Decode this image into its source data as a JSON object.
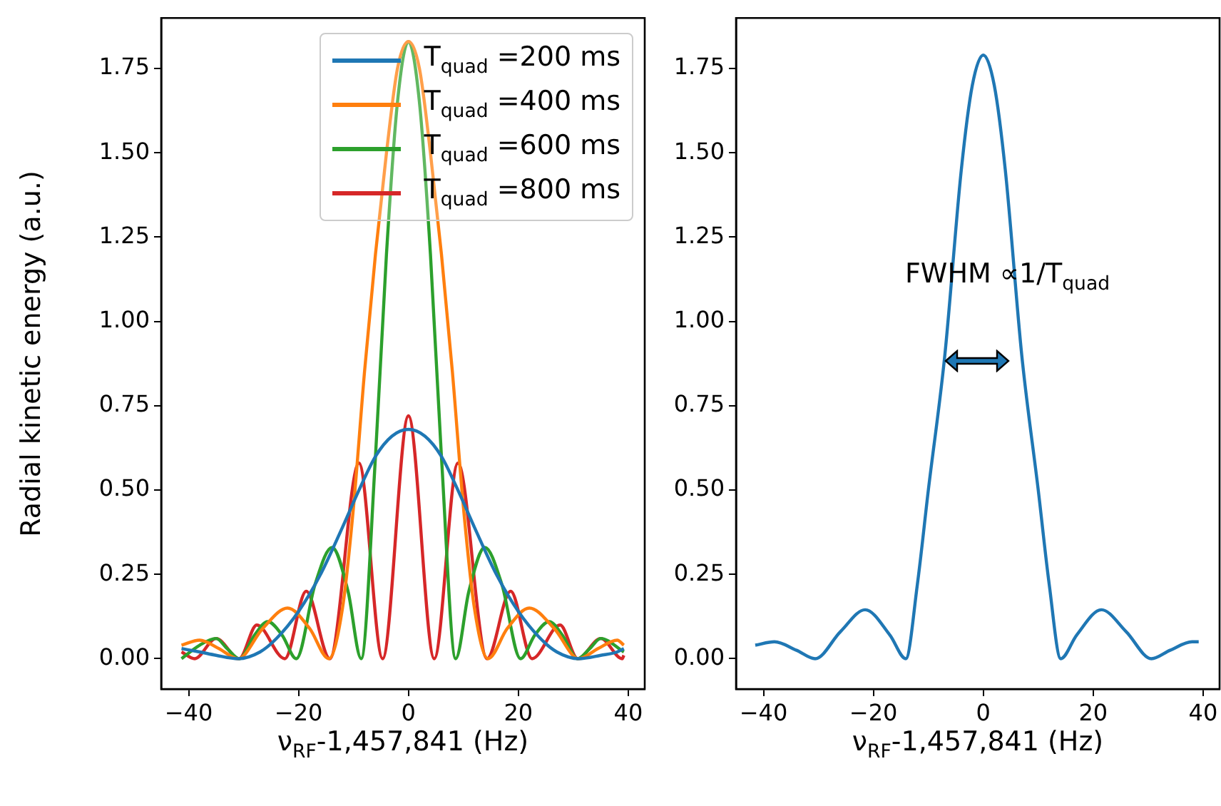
{
  "chart_data": [
    {
      "type": "line",
      "xlabel": "ν$_{RF}$-1,457,841 (Hz)",
      "ylabel": "Radial kinetic energy (a.u.)",
      "xlim": [
        -45,
        43
      ],
      "ylim": [
        -0.09,
        1.9
      ],
      "xticks": [
        -40,
        -20,
        0,
        20,
        40
      ],
      "yticks": [
        {
          "value": 0,
          "label": "0.00"
        },
        {
          "value": 0.25,
          "label": "0.25"
        },
        {
          "value": 0.5,
          "label": "0.50"
        },
        {
          "value": 0.75,
          "label": "0.75"
        },
        {
          "value": 1,
          "label": "1.00"
        },
        {
          "value": 1.25,
          "label": "1.25"
        },
        {
          "value": 1.5,
          "label": "1.50"
        },
        {
          "value": 1.75,
          "label": "1.75"
        }
      ],
      "legend": "top right",
      "marker": "none",
      "line_style": "solid",
      "series": [
        {
          "name": "T$_{quad}$ =200 ms",
          "color": "#1f77b4",
          "x": [
            -41.3,
            -38,
            -35,
            -31,
            -27,
            -24,
            -20,
            -16,
            -12,
            -9,
            -6,
            -3,
            0,
            3,
            6,
            9,
            12,
            16,
            20,
            24,
            27,
            31,
            35,
            38,
            39.2
          ],
          "values": [
            0.03,
            0.02,
            0.01,
            0,
            0.02,
            0.06,
            0.14,
            0.25,
            0.39,
            0.5,
            0.6,
            0.66,
            0.68,
            0.66,
            0.6,
            0.5,
            0.39,
            0.25,
            0.14,
            0.06,
            0.02,
            0,
            0.01,
            0.02,
            0.03
          ]
        },
        {
          "name": "T$_{quad}$ =400 ms",
          "color": "#ff7f0e",
          "x": [
            -41.3,
            -38,
            -34.5,
            -31,
            -26.5,
            -22,
            -18,
            -14.5,
            -12,
            -10,
            -8,
            -6,
            -4,
            -2,
            0,
            2,
            4,
            6,
            8,
            10,
            12,
            14.5,
            18,
            22,
            26.5,
            31,
            34.5,
            38,
            39.2
          ],
          "values": [
            0.04,
            0.055,
            0.03,
            0,
            0.09,
            0.15,
            0.09,
            0,
            0.15,
            0.45,
            0.85,
            1.2,
            1.5,
            1.75,
            1.83,
            1.75,
            1.5,
            1.2,
            0.85,
            0.45,
            0.15,
            0,
            0.09,
            0.15,
            0.09,
            0,
            0.03,
            0.055,
            0.04
          ]
        },
        {
          "name": "T$_{quad}$ =600 ms",
          "color": "#2ca02c",
          "x": [
            -41.3,
            -38,
            -35,
            -33,
            -30.8,
            -28,
            -25.6,
            -23,
            -20.4,
            -17,
            -13.9,
            -11,
            -8.6,
            -6,
            -4,
            -2,
            0,
            2,
            4,
            6,
            8.6,
            11,
            13.9,
            17,
            20.4,
            23,
            25.6,
            28,
            30.8,
            33,
            35,
            39.2
          ],
          "values": [
            0,
            0.04,
            0.06,
            0.03,
            0,
            0.07,
            0.11,
            0.07,
            0,
            0.22,
            0.33,
            0.2,
            0,
            0.6,
            1.2,
            1.65,
            1.83,
            1.65,
            1.2,
            0.6,
            0,
            0.2,
            0.33,
            0.22,
            0,
            0.07,
            0.11,
            0.07,
            0,
            0.03,
            0.06,
            0.02
          ]
        },
        {
          "name": "T$_{quad}$ =800 ms",
          "color": "#d62728",
          "x": [
            -41.3,
            -38.9,
            -35,
            -30.8,
            -27.6,
            -22.5,
            -18.6,
            -14.3,
            -9,
            -4.7,
            0,
            4.7,
            9,
            14.3,
            18.6,
            22.5,
            27.6,
            30.8,
            35,
            38.9,
            39.2
          ],
          "values": [
            0.02,
            0,
            0.06,
            0,
            0.1,
            0,
            0.2,
            0,
            0.58,
            0,
            0.72,
            0,
            0.58,
            0,
            0.2,
            0,
            0.1,
            0,
            0.06,
            0,
            0.01
          ]
        }
      ]
    },
    {
      "type": "line",
      "xlabel": "ν$_{RF}$-1,457,841 (Hz)",
      "xlim": [
        -45,
        43
      ],
      "ylim": [
        -0.09,
        1.9
      ],
      "xticks": [
        -40,
        -20,
        0,
        20,
        40
      ],
      "yticks": [
        {
          "value": 0,
          "label": "0.00"
        },
        {
          "value": 0.25,
          "label": "0.25"
        },
        {
          "value": 0.5,
          "label": "0.50"
        },
        {
          "value": 0.75,
          "label": "0.75"
        },
        {
          "value": 1,
          "label": "1.00"
        },
        {
          "value": 1.25,
          "label": "1.25"
        },
        {
          "value": 1.5,
          "label": "1.50"
        },
        {
          "value": 1.75,
          "label": "1.75"
        }
      ],
      "marker": "none",
      "line_style": "solid",
      "annotations": [
        "FWHM  ∝1/T$_{quad}$"
      ],
      "series": [
        {
          "color": "#1f77b4",
          "x": [
            -41.5,
            -38,
            -34,
            -30.6,
            -26,
            -21.5,
            -17,
            -14.1,
            -12,
            -10,
            -7,
            -4,
            -2,
            0,
            2,
            4,
            7,
            10,
            12,
            14.1,
            17,
            21.5,
            26,
            30.6,
            34,
            38,
            39.2
          ],
          "values": [
            0.04,
            0.05,
            0.025,
            0,
            0.08,
            0.145,
            0.07,
            0,
            0.22,
            0.5,
            0.9,
            1.45,
            1.7,
            1.79,
            1.7,
            1.45,
            0.9,
            0.5,
            0.22,
            0,
            0.07,
            0.145,
            0.08,
            0,
            0.025,
            0.05,
            0.05
          ]
        }
      ]
    }
  ]
}
